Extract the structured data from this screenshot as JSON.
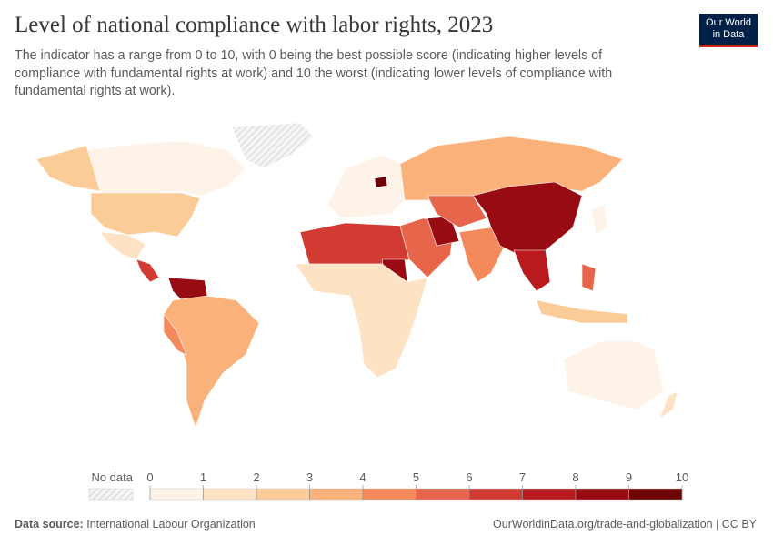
{
  "header": {
    "title": "Level of national compliance with labor rights, 2023",
    "subtitle": "The indicator has a range from 0 to 10, with 0 being the best possible score (indicating higher levels of compliance with fundamental rights at work) and 10 the worst (indicating lower levels of compliance with fundamental rights at work).",
    "logo": [
      "Our World",
      "in Data"
    ]
  },
  "legend": {
    "no_data": "No data",
    "ticks": [
      0,
      1,
      2,
      3,
      4,
      5,
      6,
      7,
      8,
      9,
      10
    ],
    "colors": [
      "#fef3e8",
      "#fde3c4",
      "#fccc98",
      "#fbb27a",
      "#f48a5c",
      "#e6654b",
      "#d23b31",
      "#b91a1e",
      "#980b12",
      "#6e0406"
    ]
  },
  "footer": {
    "source_label": "Data source:",
    "source": "International Labour Organization",
    "url": "OurWorldinData.org/trade-and-globalization | CC BY"
  }
}
